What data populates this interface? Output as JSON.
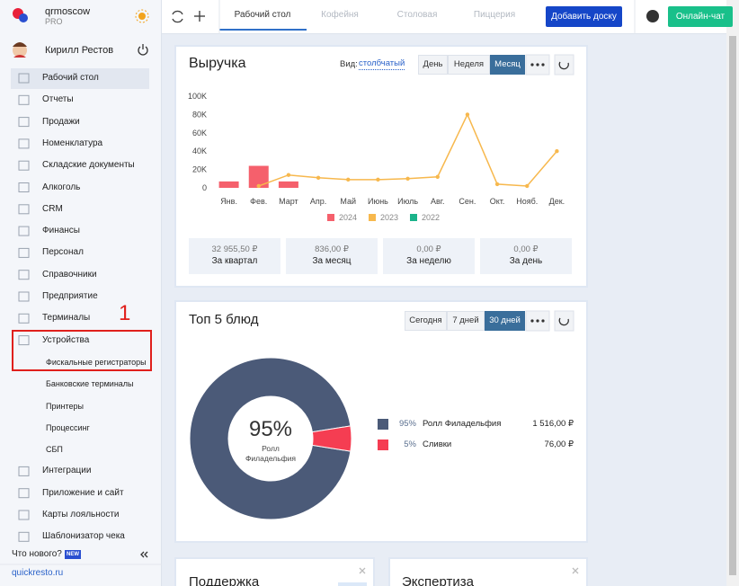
{
  "brand": {
    "name": "qrmoscow",
    "plan": "PRO"
  },
  "user": {
    "name": "Кирилл Рестов"
  },
  "sidebar": {
    "items": [
      {
        "label": "Рабочий стол"
      },
      {
        "label": "Отчеты"
      },
      {
        "label": "Продажи"
      },
      {
        "label": "Номенклатура"
      },
      {
        "label": "Складские документы"
      },
      {
        "label": "Алкоголь"
      },
      {
        "label": "CRM"
      },
      {
        "label": "Финансы"
      },
      {
        "label": "Персонал"
      },
      {
        "label": "Справочники"
      },
      {
        "label": "Предприятие"
      },
      {
        "label": "Терминалы"
      },
      {
        "label": "Устройства",
        "children": [
          "Фискальные регистраторы",
          "Банковские терминалы",
          "Принтеры",
          "Процессинг",
          "СБП"
        ]
      },
      {
        "label": "Интеграции"
      },
      {
        "label": "Приложение и сайт"
      },
      {
        "label": "Карты лояльности"
      },
      {
        "label": "Шаблонизатор чека"
      }
    ],
    "active_item": 0,
    "whats_new": "Что нового?",
    "new_badge": "NEW",
    "site_link": "quickresto.ru"
  },
  "annotation": "1",
  "topbar": {
    "tabs": [
      "Рабочий стол",
      "Кофейня",
      "Столовая",
      "Пиццерия"
    ],
    "active_tab": 0,
    "add_board": "Добавить доску",
    "help": "?",
    "online_chat": "Онлайн-чат"
  },
  "revenue_card": {
    "view_label": "Вид:",
    "view_value": "столбчатый",
    "periods": [
      "День",
      "Неделя",
      "Месяц"
    ],
    "active_period": 2,
    "summary": [
      {
        "value": "32 955,50 ₽",
        "label": "За квартал"
      },
      {
        "value": "836,00 ₽",
        "label": "За месяц"
      },
      {
        "value": "0,00 ₽",
        "label": "За неделю"
      },
      {
        "value": "0,00 ₽",
        "label": "За день"
      }
    ]
  },
  "top_card": {
    "periods": [
      "Сегодня",
      "7 дней",
      "30 дней"
    ],
    "active_period": 2
  },
  "bottom_cards": [
    "Поддержка",
    "Экспертиза"
  ],
  "chart_data": [
    {
      "type": "bar",
      "title": "Выручка",
      "categories": [
        "Янв.",
        "Фев.",
        "Март",
        "Апр.",
        "Май",
        "Июнь",
        "Июль",
        "Авг.",
        "Сен.",
        "Окт.",
        "Нояб.",
        "Дек."
      ],
      "series": [
        {
          "name": "2024",
          "type": "bar",
          "color": "#f5606c",
          "values": [
            7000,
            24000,
            7000,
            null,
            null,
            null,
            null,
            null,
            null,
            null,
            null,
            null
          ]
        },
        {
          "name": "2023",
          "type": "line",
          "color": "#f7b84d",
          "values": [
            null,
            2000,
            14000,
            11000,
            9000,
            9000,
            10000,
            12000,
            80000,
            4000,
            2000,
            40000
          ]
        },
        {
          "name": "2022",
          "type": "line",
          "color": "#1bb38a",
          "values": [
            null,
            null,
            null,
            null,
            null,
            null,
            null,
            null,
            null,
            null,
            null,
            null
          ]
        }
      ],
      "ylim": [
        0,
        100000
      ],
      "yticks": [
        0,
        {
          "value": 20000,
          "label": "20K"
        },
        {
          "value": 40000,
          "label": "40K"
        },
        {
          "value": 60000,
          "label": "60K"
        },
        {
          "value": 80000,
          "label": "80K"
        },
        {
          "value": 100000,
          "label": "100K"
        }
      ],
      "grid": false
    },
    {
      "type": "pie",
      "title": "Топ 5 блюд",
      "donut": true,
      "categories": [
        "Ролл Филадельфия",
        "Сливки"
      ],
      "values": [
        95,
        5
      ],
      "value_labels": [
        "95%",
        "5%"
      ],
      "colors": [
        "#4b5a78",
        "#f53d52"
      ],
      "amounts": [
        "1 516,00 ₽",
        "76,00 ₽"
      ]
    }
  ]
}
